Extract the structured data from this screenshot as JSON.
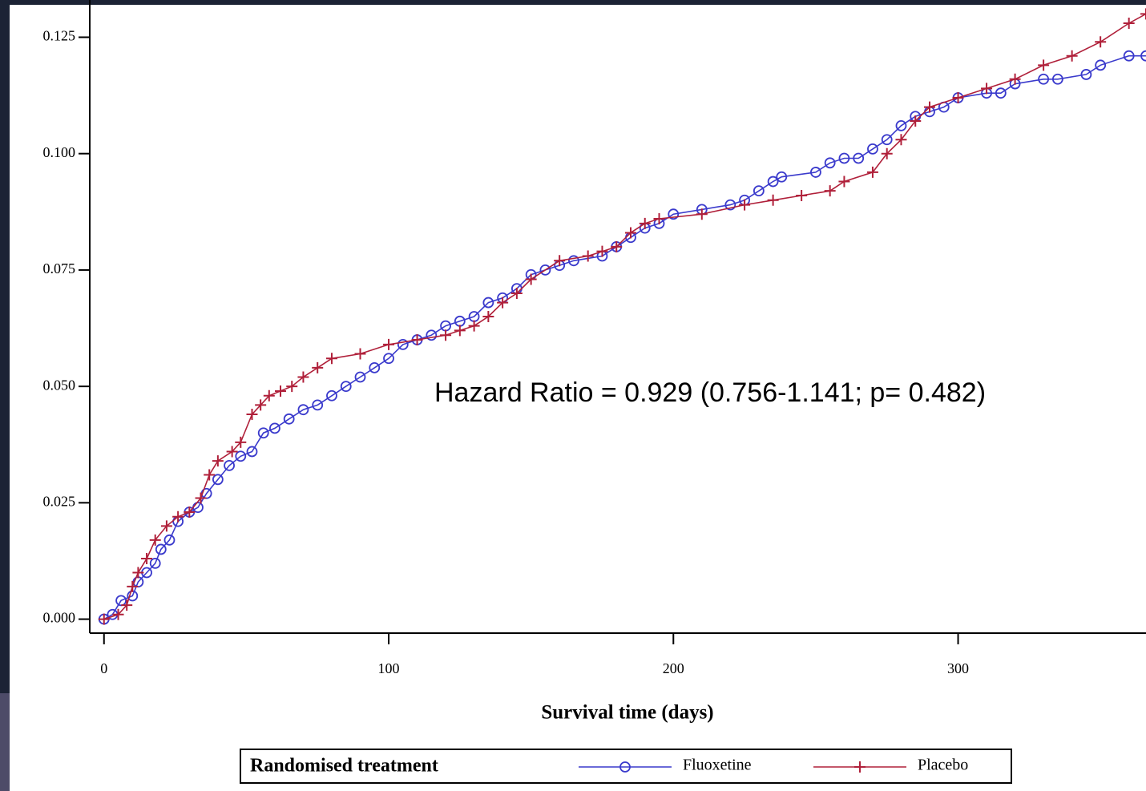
{
  "chart_data": {
    "type": "line",
    "annotation": "Hazard Ratio = 0.929 (0.756-1.141; p= 0.482)",
    "x_label": "Survival time (days)",
    "legend_title": "Randomised treatment",
    "xlim": [
      -5,
      366
    ],
    "xticks": [
      0,
      100,
      200,
      300
    ],
    "ylim": [
      -0.003,
      0.133
    ],
    "yticks": [
      {
        "value": 0,
        "label": "0.000"
      },
      0.025,
      {
        "value": 0.05,
        "label": "0.050"
      },
      0.075,
      {
        "value": 0.1,
        "label": "0.100"
      },
      0.125
    ],
    "series": [
      {
        "name": "Fluoxetine",
        "color": "#3a3acc",
        "marker": "circle",
        "x": [
          0,
          3,
          6,
          10,
          12,
          15,
          18,
          20,
          23,
          26,
          30,
          33,
          36,
          40,
          44,
          48,
          52,
          56,
          60,
          65,
          70,
          75,
          80,
          85,
          90,
          95,
          100,
          105,
          110,
          115,
          120,
          125,
          130,
          135,
          140,
          145,
          150,
          155,
          160,
          165,
          175,
          180,
          185,
          190,
          195,
          200,
          210,
          220,
          225,
          230,
          235,
          238,
          250,
          255,
          260,
          265,
          270,
          275,
          280,
          285,
          290,
          295,
          300,
          310,
          315,
          320,
          330,
          335,
          345,
          350,
          360,
          366
        ],
        "values": [
          0,
          0.001,
          0.004,
          0.005,
          0.008,
          0.01,
          0.012,
          0.015,
          0.017,
          0.021,
          0.023,
          0.024,
          0.027,
          0.03,
          0.033,
          0.035,
          0.036,
          0.04,
          0.041,
          0.043,
          0.045,
          0.046,
          0.048,
          0.05,
          0.052,
          0.054,
          0.056,
          0.059,
          0.06,
          0.061,
          0.063,
          0.064,
          0.065,
          0.068,
          0.069,
          0.071,
          0.074,
          0.075,
          0.076,
          0.077,
          0.078,
          0.08,
          0.082,
          0.084,
          0.085,
          0.087,
          0.088,
          0.089,
          0.09,
          0.092,
          0.094,
          0.095,
          0.096,
          0.098,
          0.099,
          0.099,
          0.101,
          0.103,
          0.106,
          0.108,
          0.109,
          0.11,
          0.112,
          0.113,
          0.113,
          0.115,
          0.116,
          0.116,
          0.117,
          0.119,
          0.121,
          0.121
        ]
      },
      {
        "name": "Placebo",
        "color": "#b0203a",
        "marker": "plus",
        "x": [
          0,
          5,
          8,
          10,
          12,
          15,
          18,
          22,
          26,
          30,
          34,
          37,
          40,
          45,
          48,
          52,
          55,
          58,
          62,
          66,
          70,
          75,
          80,
          90,
          100,
          110,
          120,
          125,
          130,
          135,
          140,
          145,
          150,
          160,
          170,
          175,
          180,
          185,
          190,
          195,
          210,
          225,
          235,
          245,
          255,
          260,
          270,
          275,
          280,
          285,
          290,
          300,
          310,
          320,
          330,
          340,
          350,
          360,
          366
        ],
        "values": [
          0,
          0.001,
          0.003,
          0.007,
          0.01,
          0.013,
          0.017,
          0.02,
          0.022,
          0.023,
          0.026,
          0.031,
          0.034,
          0.036,
          0.038,
          0.044,
          0.046,
          0.048,
          0.049,
          0.05,
          0.052,
          0.054,
          0.056,
          0.057,
          0.059,
          0.06,
          0.061,
          0.062,
          0.063,
          0.065,
          0.068,
          0.07,
          0.073,
          0.077,
          0.078,
          0.079,
          0.08,
          0.083,
          0.085,
          0.086,
          0.087,
          0.089,
          0.09,
          0.091,
          0.092,
          0.094,
          0.096,
          0.1,
          0.103,
          0.107,
          0.11,
          0.112,
          0.114,
          0.116,
          0.119,
          0.121,
          0.124,
          0.128,
          0.13
        ]
      }
    ]
  }
}
